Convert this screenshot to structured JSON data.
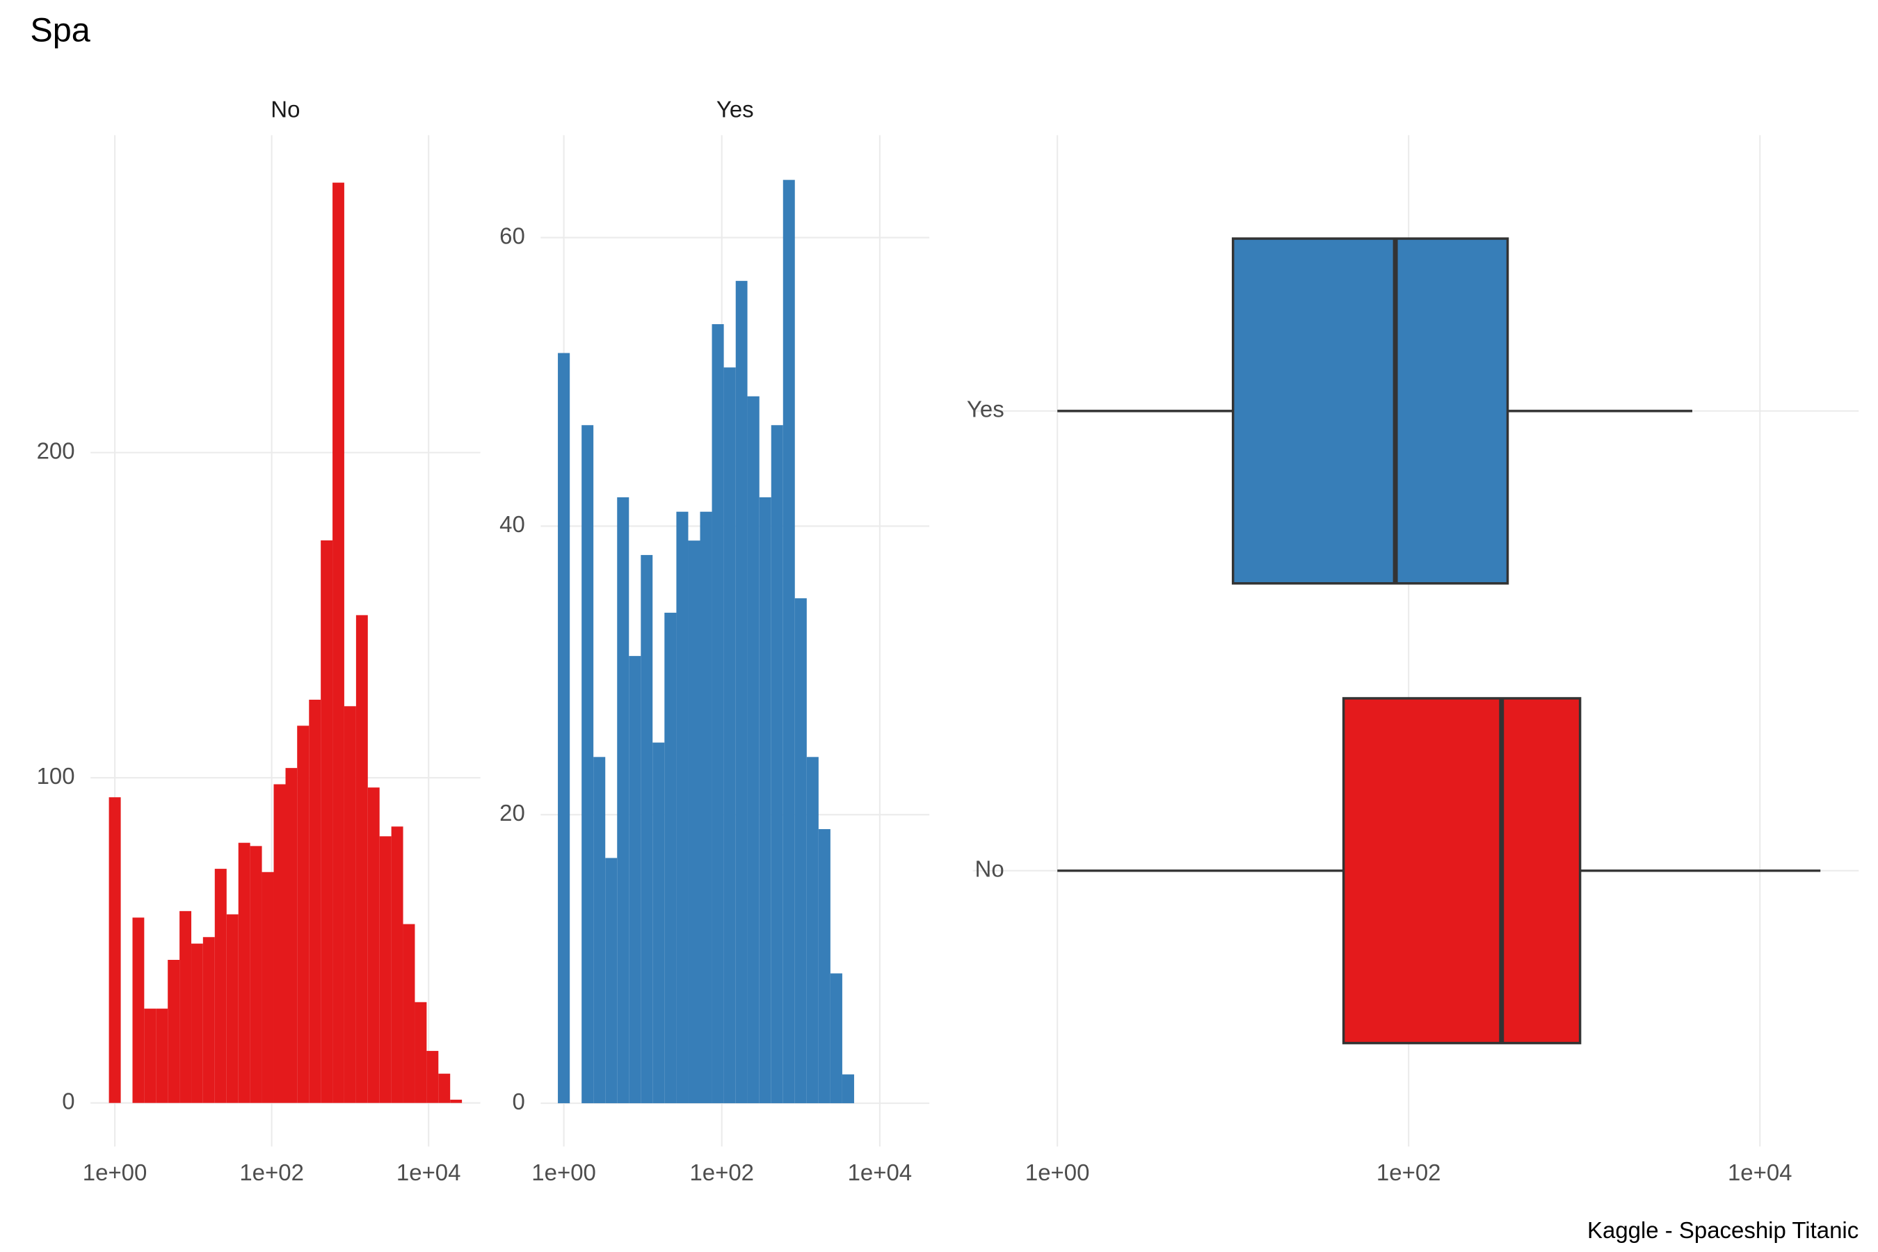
{
  "title": "Spa",
  "caption": "Kaggle - Spaceship Titanic",
  "chart_data": [
    {
      "type": "histogram",
      "title": "No",
      "color": "#e41a1c",
      "log_x": true,
      "grid": true,
      "bins": [
        0.841,
        1.19,
        1.68,
        2.37,
        3.35,
        4.73,
        6.68,
        9.44,
        13.3,
        18.8,
        26.6,
        37.6,
        53.1,
        75.0,
        106,
        150,
        211,
        299,
        422,
        596,
        841,
        1189,
        1679,
        2371,
        3350,
        4732,
        6683,
        9441,
        13335,
        18836,
        26607
      ],
      "values": [
        94,
        0,
        57,
        29,
        29,
        44,
        59,
        49,
        51,
        72,
        58,
        80,
        79,
        71,
        98,
        103,
        116,
        124,
        173,
        283,
        122,
        150,
        97,
        82,
        85,
        55,
        31,
        16,
        9,
        1
      ],
      "xlim": [
        0.49,
        45700
      ],
      "xticks": [
        {
          "value": 1,
          "label": "1e+00"
        },
        {
          "value": 100,
          "label": "1e+02"
        },
        {
          "value": 10000,
          "label": "1e+04"
        }
      ],
      "ylim": [
        -13.4,
        297.6
      ],
      "yticks": [
        0,
        100,
        200
      ]
    },
    {
      "type": "histogram",
      "title": "Yes",
      "color": "#377eb8",
      "log_x": true,
      "grid": true,
      "bins": [
        0.841,
        1.19,
        1.68,
        2.37,
        3.35,
        4.73,
        6.68,
        9.44,
        13.3,
        18.8,
        26.6,
        37.6,
        53.1,
        75.0,
        106,
        150,
        211,
        299,
        422,
        596,
        841,
        1189,
        1679,
        2371,
        3350,
        4732
      ],
      "values": [
        52,
        0,
        47,
        24,
        17,
        42,
        31,
        38,
        25,
        34,
        41,
        39,
        41,
        54,
        51,
        57,
        49,
        42,
        47,
        64,
        35,
        24,
        19,
        9,
        2
      ],
      "xlim": [
        0.51,
        42400
      ],
      "xticks": [
        {
          "value": 1,
          "label": "1e+00"
        },
        {
          "value": 100,
          "label": "1e+02"
        },
        {
          "value": 10000,
          "label": "1e+04"
        }
      ],
      "ylim": [
        -3.0,
        67.1
      ],
      "yticks": [
        0,
        20,
        40,
        60
      ]
    },
    {
      "type": "boxplot",
      "log_x": true,
      "grid": true,
      "horizontal": true,
      "categories": [
        "No",
        "Yes"
      ],
      "colors": [
        "#e41a1c",
        "#377eb8"
      ],
      "boxes": [
        {
          "min": 1,
          "q1": 42.6,
          "median": 338,
          "q3": 946,
          "max": 22100
        },
        {
          "min": 1,
          "q1": 10,
          "median": 84,
          "q3": 366,
          "max": 4120
        }
      ],
      "xlim": [
        0.33,
        36500
      ],
      "xticks": [
        {
          "value": 1,
          "label": "1e+00"
        },
        {
          "value": 100,
          "label": "1e+02"
        },
        {
          "value": 10000,
          "label": "1e+04"
        }
      ]
    }
  ]
}
